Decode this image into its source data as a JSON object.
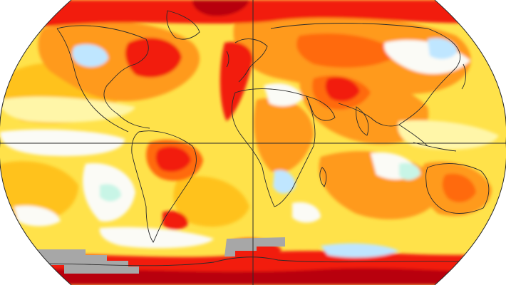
{
  "map": {
    "projection": "robinson",
    "palette": {
      "background": "#ffffff",
      "white_band": "#fbfbf6",
      "pale_yellow": "#fff6a8",
      "yellow": "#ffe24a",
      "gold": "#ffc21a",
      "orange": "#ff9a1a",
      "deep_orange": "#ff6a10",
      "red": "#f21a0a",
      "dark_red": "#b8000a",
      "light_blue": "#bfe6ff",
      "blue": "#88c4ff",
      "mint": "#c8f5e6",
      "no_data_gray": "#a7a7a7",
      "coastline": "#2b2b2b",
      "gridline": "#2b2b2b"
    },
    "gridlines": [
      "equator",
      "prime-meridian"
    ],
    "no_data_regions": [
      "antarctica-west"
    ]
  }
}
